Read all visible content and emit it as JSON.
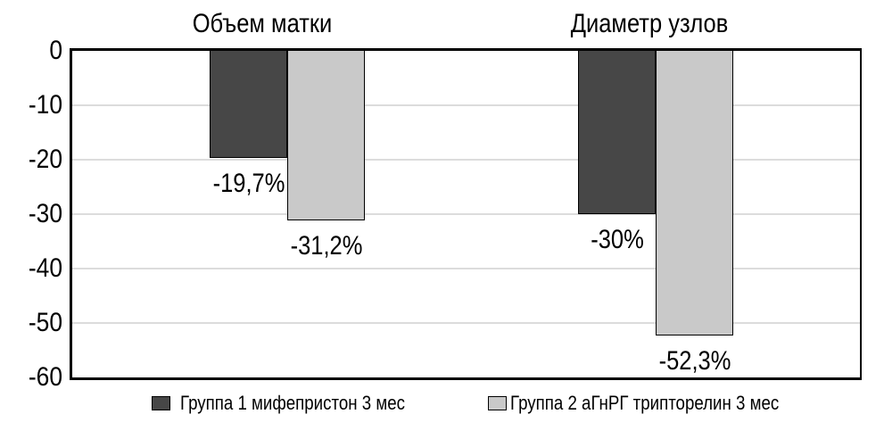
{
  "chart_data": {
    "type": "bar",
    "categories": [
      "Объем матки",
      "Диаметр узлов"
    ],
    "series": [
      {
        "name": "Группа 1 мифепристон 3 мес",
        "color": "#474747",
        "values": [
          -19.7,
          -30
        ]
      },
      {
        "name": "Группа 2 аГнРГ трипторелин 3 мес",
        "color": "#c9c9c9",
        "values": [
          -31.2,
          -52.3
        ]
      }
    ],
    "value_labels": [
      [
        "-19,7%",
        "-30%"
      ],
      [
        "-31,2%",
        "-52,3%"
      ]
    ],
    "yticks": [
      "0",
      "-10",
      "-20",
      "-30",
      "-40",
      "-50",
      "-60"
    ],
    "ylim": [
      -60,
      0
    ],
    "grid": true,
    "legend_position": "bottom",
    "colors": {
      "axis": "#000000",
      "gridline": "#dcdcdc",
      "background": "#ffffff"
    }
  }
}
